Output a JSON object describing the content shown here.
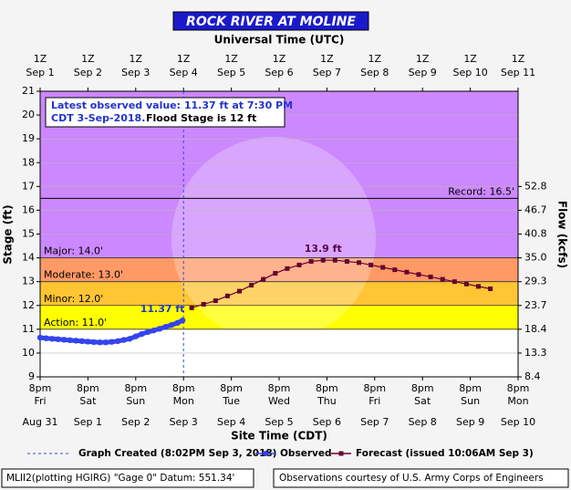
{
  "chart_data": {
    "type": "line",
    "title": "ROCK RIVER AT MOLINE",
    "top_axis_title": "Universal Time (UTC)",
    "x_axis_title": "Site Time (CDT)",
    "y_axis_title": "Stage (ft)",
    "y2_axis_title": "Flow (kcfs)",
    "xlim": [
      0,
      10
    ],
    "xticks": [
      {
        "value": 0,
        "label": "8pm"
      },
      {
        "value": 1,
        "label": "8pm"
      },
      {
        "value": 2,
        "label": "8pm"
      },
      {
        "value": 3,
        "label": "8pm"
      },
      {
        "value": 4,
        "label": "8pm"
      },
      {
        "value": 5,
        "label": "8pm"
      },
      {
        "value": 6,
        "label": "8pm"
      },
      {
        "value": 7,
        "label": "8pm"
      },
      {
        "value": 8,
        "label": "8pm"
      },
      {
        "value": 9,
        "label": "8pm"
      },
      {
        "value": 10,
        "label": "8pm"
      }
    ],
    "xtick_days": [
      "Fri",
      "Sat",
      "Sun",
      "Mon",
      "Tue",
      "Wed",
      "Thu",
      "Fri",
      "Sat",
      "Sun",
      "Mon"
    ],
    "xtick_dates": [
      "Aug 31",
      "Sep 1",
      "Sep 2",
      "Sep 3",
      "Sep 4",
      "Sep 5",
      "Sep 6",
      "Sep 7",
      "Sep 8",
      "Sep 9",
      "Sep 10"
    ],
    "top_ticks": [
      "1Z",
      "1Z",
      "1Z",
      "1Z",
      "1Z",
      "1Z",
      "1Z",
      "1Z",
      "1Z",
      "1Z",
      "1Z"
    ],
    "top_dates": [
      "Sep 1",
      "Sep 2",
      "Sep 3",
      "Sep 4",
      "Sep 5",
      "Sep 6",
      "Sep 7",
      "Sep 8",
      "Sep 9",
      "Sep 10",
      "Sep 11"
    ],
    "ylim": [
      9,
      21
    ],
    "yticks": [
      9,
      10,
      11,
      12,
      13,
      14,
      15,
      16,
      17,
      18,
      19,
      20,
      21
    ],
    "y2ticks": [
      8.4,
      13.3,
      18.4,
      23.7,
      29.3,
      {
        "value": 35,
        "label": "35.0"
      },
      40.8,
      46.7,
      52.8
    ],
    "y2_at_stage": [
      9,
      10,
      11,
      12,
      13,
      14,
      15,
      16,
      17
    ],
    "grid": true,
    "thresholds": [
      {
        "name": "Action",
        "value": 11,
        "label": "Action: 11.0'",
        "color": "#ffff00"
      },
      {
        "name": "Minor",
        "value": 12,
        "label": "Minor: 12.0'",
        "color": "#ffc533"
      },
      {
        "name": "Moderate",
        "value": 13,
        "label": "Moderate: 13.0'",
        "color": "#ff9a66"
      },
      {
        "name": "Major",
        "value": 14,
        "label": "Major: 14.0'",
        "color": "#cc88ff"
      }
    ],
    "record": {
      "value": 16.5,
      "label": "Record: 16.5'"
    },
    "graph_created": {
      "x": 3.0,
      "label": "Graph Created (8:02PM Sep 3, 2018)"
    },
    "info_box": [
      "Latest observed value: 11.37 ft at 7:30 PM",
      "CDT 3-Sep-2018.",
      "Flood Stage is 12 ft"
    ],
    "series": [
      {
        "name": "Observed",
        "color": "#3344ee",
        "x": [
          0,
          0.125,
          0.25,
          0.375,
          0.5,
          0.625,
          0.75,
          0.875,
          1.0,
          1.125,
          1.25,
          1.375,
          1.5,
          1.625,
          1.75,
          1.875,
          2.0,
          2.125,
          2.25,
          2.375,
          2.5,
          2.625,
          2.75,
          2.875,
          2.979
        ],
        "values": [
          10.65,
          10.62,
          10.6,
          10.58,
          10.56,
          10.54,
          10.52,
          10.5,
          10.48,
          10.46,
          10.45,
          10.45,
          10.47,
          10.5,
          10.55,
          10.6,
          10.7,
          10.8,
          10.88,
          10.95,
          11.02,
          11.1,
          11.18,
          11.27,
          11.37
        ],
        "value_labels": [
          null,
          null,
          null,
          null,
          null,
          null,
          null,
          null,
          null,
          null,
          null,
          null,
          null,
          null,
          null,
          null,
          null,
          null,
          null,
          null,
          null,
          null,
          null,
          null,
          "11.37 ft"
        ]
      },
      {
        "name": "Forecast (issued 10:06AM Sep 3)",
        "color": "#660033",
        "x": [
          3.17,
          3.42,
          3.67,
          3.92,
          4.17,
          4.42,
          4.67,
          4.92,
          5.17,
          5.42,
          5.67,
          5.92,
          6.17,
          6.42,
          6.67,
          6.92,
          7.17,
          7.42,
          7.67,
          7.92,
          8.17,
          8.42,
          8.67,
          8.92,
          9.17,
          9.42
        ],
        "values": [
          11.9,
          12.05,
          12.2,
          12.4,
          12.6,
          12.85,
          13.1,
          13.35,
          13.55,
          13.7,
          13.85,
          13.9,
          13.9,
          13.85,
          13.8,
          13.7,
          13.6,
          13.5,
          13.4,
          13.3,
          13.2,
          13.1,
          13.0,
          12.9,
          12.8,
          12.7
        ],
        "value_labels": [
          null,
          null,
          null,
          null,
          null,
          null,
          null,
          null,
          null,
          null,
          null,
          "13.9 ft",
          null,
          null,
          null,
          null,
          null,
          null,
          null,
          null,
          null,
          null,
          null,
          null,
          null,
          null
        ]
      }
    ],
    "footer_left": "MLII2(plotting HGIRG) \"Gage 0\" Datum: 551.34'",
    "footer_right": "Observations courtesy of U.S. Army Corps of Engineers"
  }
}
